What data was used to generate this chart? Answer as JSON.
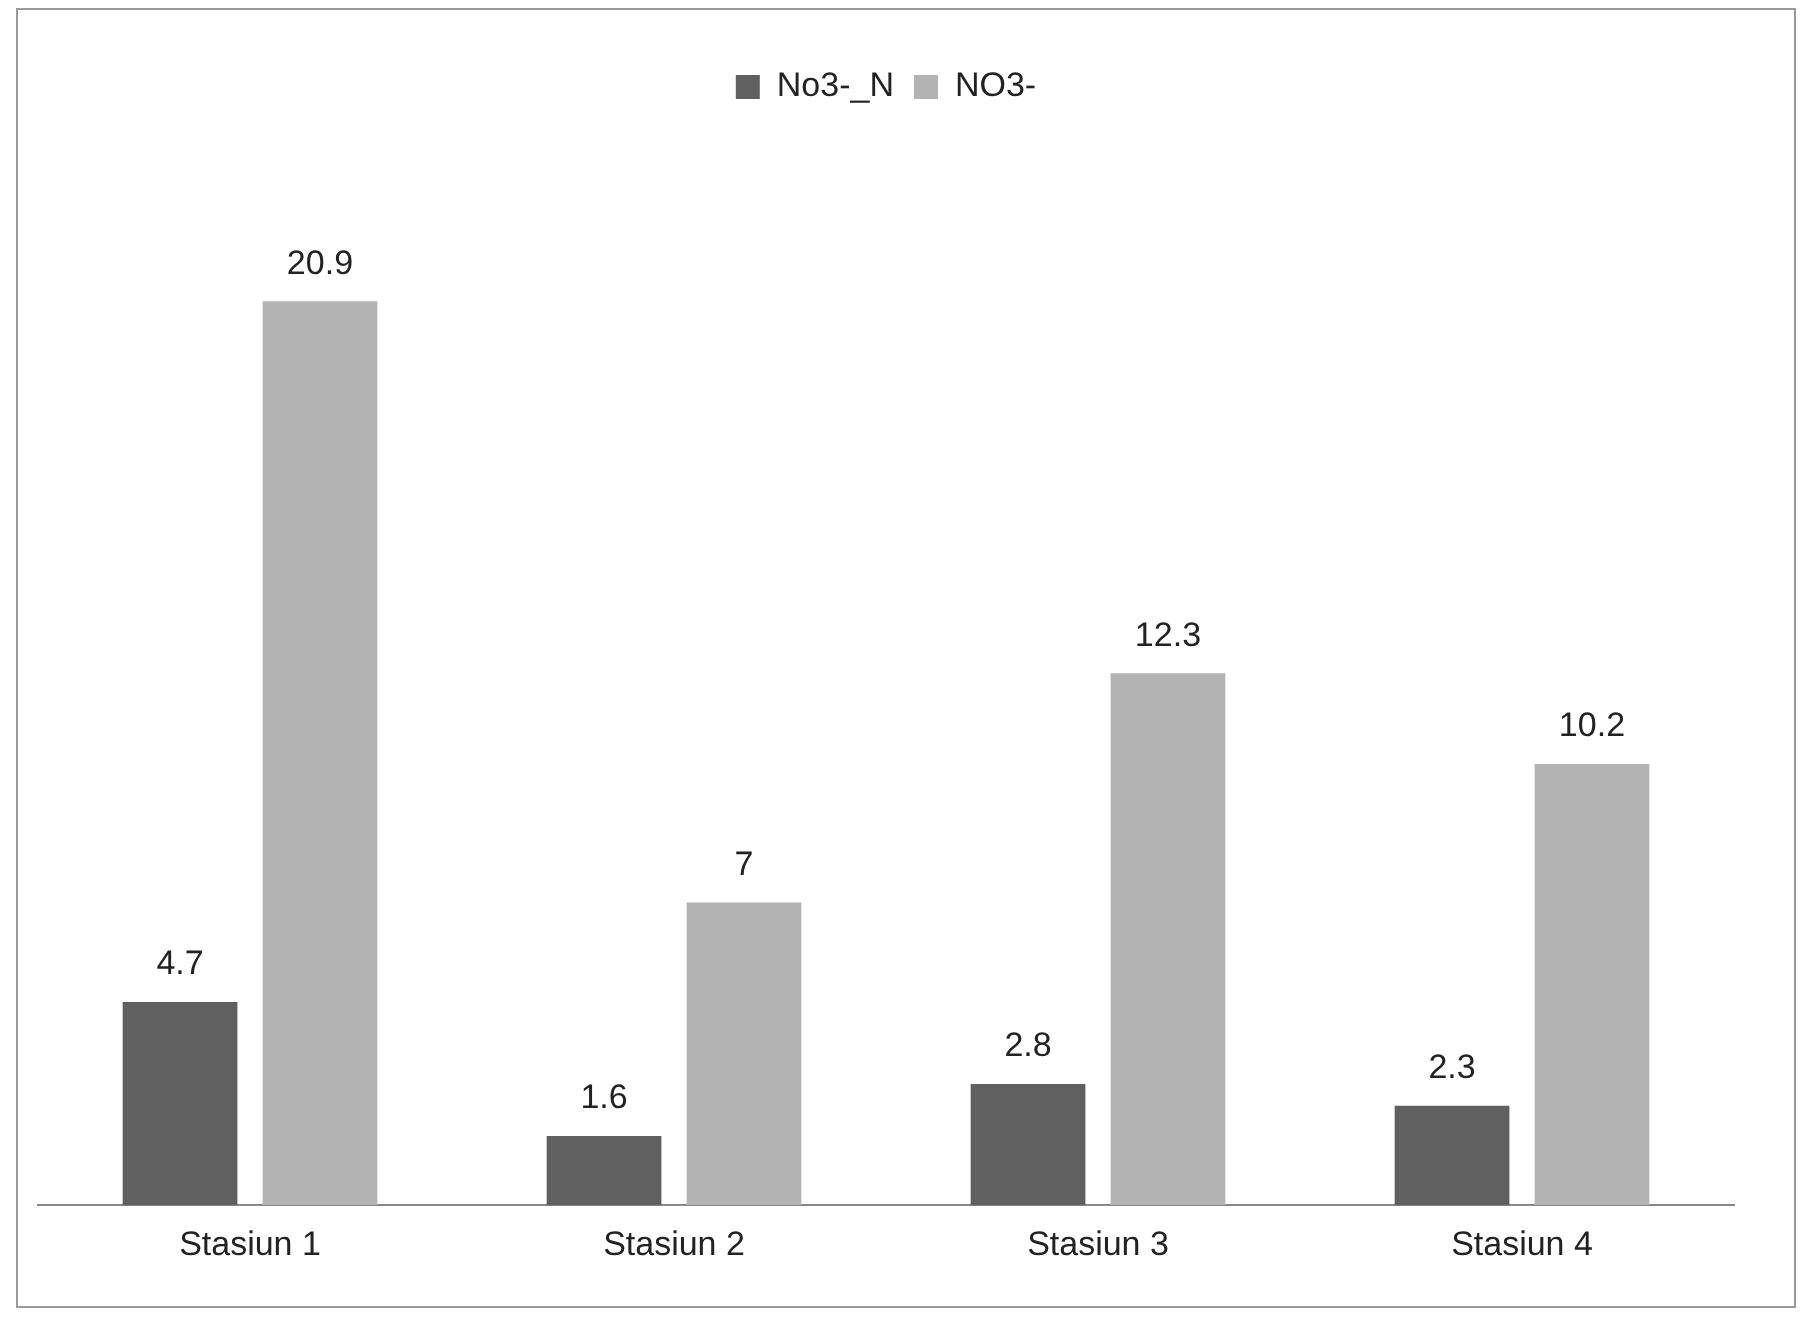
{
  "chart_data": {
    "type": "bar",
    "categories": [
      "Stasiun 1",
      "Stasiun 2",
      "Stasiun 3",
      "Stasiun 4"
    ],
    "series": [
      {
        "name": "No3-_N",
        "color": "#606060",
        "values": [
          4.7,
          1.6,
          2.8,
          2.3
        ]
      },
      {
        "name": "NO3-",
        "color": "#b3b3b3",
        "values": [
          20.9,
          7,
          12.3,
          10.2
        ]
      }
    ],
    "data_labels": true,
    "legend": "top",
    "grid": false
  }
}
